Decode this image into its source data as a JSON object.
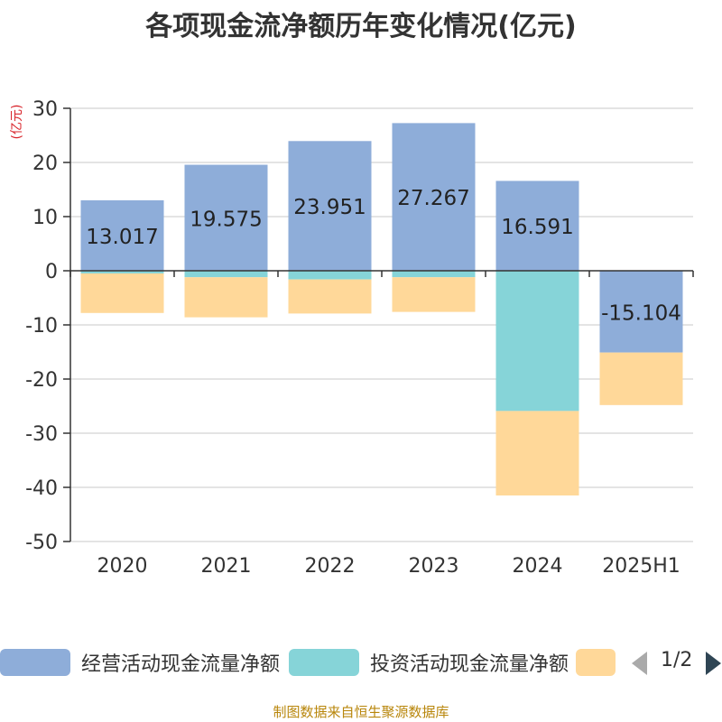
{
  "chart_data": {
    "type": "bar",
    "stacked": true,
    "title": "各项现金流净额历年变化情况(亿元)",
    "unit_label": "(亿元)",
    "categories": [
      "2020",
      "2021",
      "2022",
      "2023",
      "2024",
      "2025H1"
    ],
    "ylim": [
      -50,
      30
    ],
    "yticks": [
      30,
      20,
      10,
      0,
      -10,
      -20,
      -30,
      -40,
      -50
    ],
    "grid": true,
    "series": [
      {
        "name": "经营活动现金流量净额",
        "color": "#8eadd9",
        "values": [
          13.017,
          19.575,
          23.951,
          27.267,
          16.591,
          -15.104
        ],
        "labels": [
          "13.017",
          "19.575",
          "23.951",
          "27.267",
          "16.591",
          "-15.104"
        ]
      },
      {
        "name": "投资活动现金流量净额",
        "color": "#86d4d8",
        "values": [
          -0.5,
          -1.2,
          -1.6,
          -1.2,
          -25.9,
          0
        ]
      },
      {
        "name": "",
        "color": "#ffd899",
        "values": [
          -7.3,
          -7.4,
          -6.3,
          -6.4,
          -15.6,
          -9.7
        ]
      }
    ],
    "legend_position": "bottom"
  },
  "legend": {
    "pager_text": "1/2"
  },
  "source": "制图数据来自恒生聚源数据库"
}
